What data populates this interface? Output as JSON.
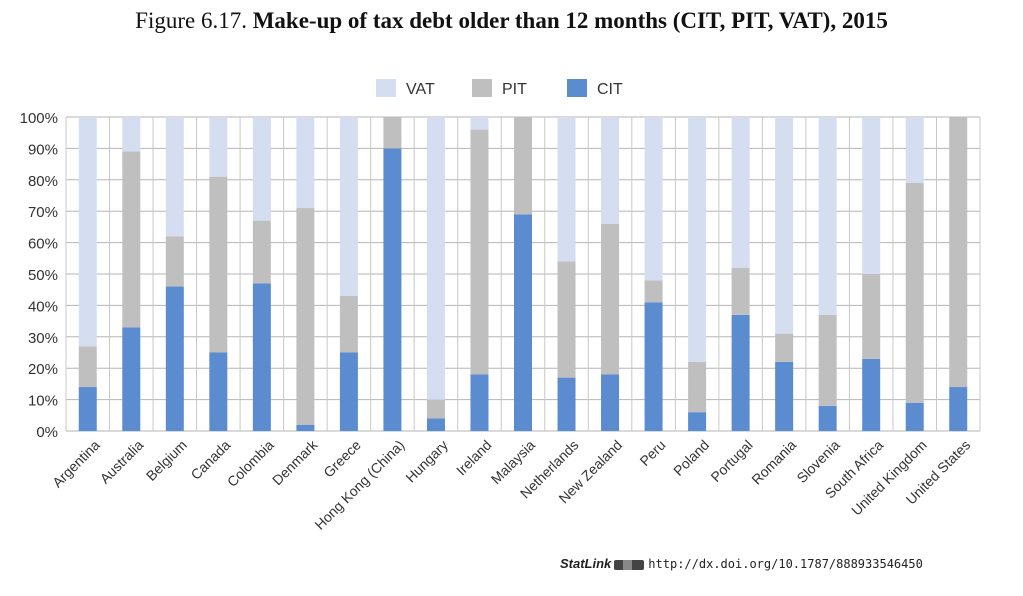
{
  "figure": {
    "prefix": "Figure 6.17.",
    "title": "Make-up of tax debt older than 12 months (CIT, PIT, VAT), 2015"
  },
  "statlink": {
    "label": "StatLink",
    "url": "http://dx.doi.org/10.1787/888933546450"
  },
  "chart_data": {
    "type": "bar",
    "stacked": true,
    "percent": true,
    "categories": [
      "Argentina",
      "Australia",
      "Belgium",
      "Canada",
      "Colombia",
      "Denmark",
      "Greece",
      "Hong Kong (China)",
      "Hungary",
      "Ireland",
      "Malaysia",
      "Netherlands",
      "New Zealand",
      "Peru",
      "Poland",
      "Portugal",
      "Romania",
      "Slovenia",
      "South Africa",
      "United Kingdom",
      "United States"
    ],
    "series": [
      {
        "name": "CIT",
        "color": "#5b8ccf",
        "values": [
          14,
          33,
          46,
          25,
          47,
          2,
          25,
          90,
          4,
          18,
          69,
          17,
          18,
          41,
          6,
          37,
          22,
          8,
          23,
          9,
          14
        ]
      },
      {
        "name": "PIT",
        "color": "#bfbfbf",
        "values": [
          13,
          56,
          16,
          56,
          20,
          69,
          18,
          10,
          6,
          78,
          31,
          37,
          48,
          7,
          16,
          15,
          9,
          29,
          27,
          70,
          86
        ]
      },
      {
        "name": "VAT",
        "color": "#d4def0",
        "values": [
          73,
          11,
          38,
          19,
          33,
          29,
          57,
          0,
          90,
          4,
          0,
          46,
          34,
          52,
          78,
          48,
          69,
          63,
          50,
          21,
          0
        ]
      }
    ],
    "legend_order": [
      "VAT",
      "PIT",
      "CIT"
    ],
    "legend_position": "top-center",
    "y_ticks": [
      "0%",
      "10%",
      "20%",
      "30%",
      "40%",
      "50%",
      "60%",
      "70%",
      "80%",
      "90%",
      "100%"
    ],
    "ylim": [
      0,
      100
    ],
    "grid": "horizontal"
  }
}
